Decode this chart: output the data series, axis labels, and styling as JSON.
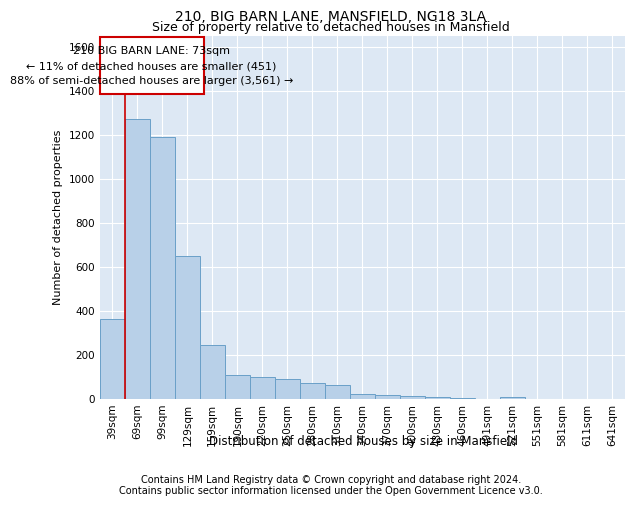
{
  "title1": "210, BIG BARN LANE, MANSFIELD, NG18 3LA",
  "title2": "Size of property relative to detached houses in Mansfield",
  "xlabel": "Distribution of detached houses by size in Mansfield",
  "ylabel": "Number of detached properties",
  "categories": [
    "39sqm",
    "69sqm",
    "99sqm",
    "129sqm",
    "159sqm",
    "190sqm",
    "220sqm",
    "250sqm",
    "280sqm",
    "310sqm",
    "340sqm",
    "370sqm",
    "400sqm",
    "430sqm",
    "460sqm",
    "491sqm",
    "521sqm",
    "551sqm",
    "581sqm",
    "611sqm",
    "641sqm"
  ],
  "values": [
    360,
    1270,
    1190,
    650,
    245,
    105,
    100,
    90,
    70,
    60,
    20,
    18,
    10,
    5,
    3,
    0,
    5,
    0,
    0,
    0,
    0
  ],
  "bar_color": "#b8d0e8",
  "bar_edge_color": "#6aa0c8",
  "bg_color": "#dde8f4",
  "grid_color": "#ffffff",
  "annotation_text": "210 BIG BARN LANE: 73sqm\n← 11% of detached houses are smaller (451)\n88% of semi-detached houses are larger (3,561) →",
  "vline_x": 0.5,
  "vline_color": "#cc0000",
  "annotation_box_color": "#cc0000",
  "ylim": [
    0,
    1650
  ],
  "yticks": [
    0,
    200,
    400,
    600,
    800,
    1000,
    1200,
    1400,
    1600
  ],
  "footer": "Contains HM Land Registry data © Crown copyright and database right 2024.\nContains public sector information licensed under the Open Government Licence v3.0.",
  "title1_fontsize": 10,
  "title2_fontsize": 9,
  "xlabel_fontsize": 8.5,
  "ylabel_fontsize": 8,
  "tick_fontsize": 7.5,
  "footer_fontsize": 7,
  "annotation_fontsize": 8
}
